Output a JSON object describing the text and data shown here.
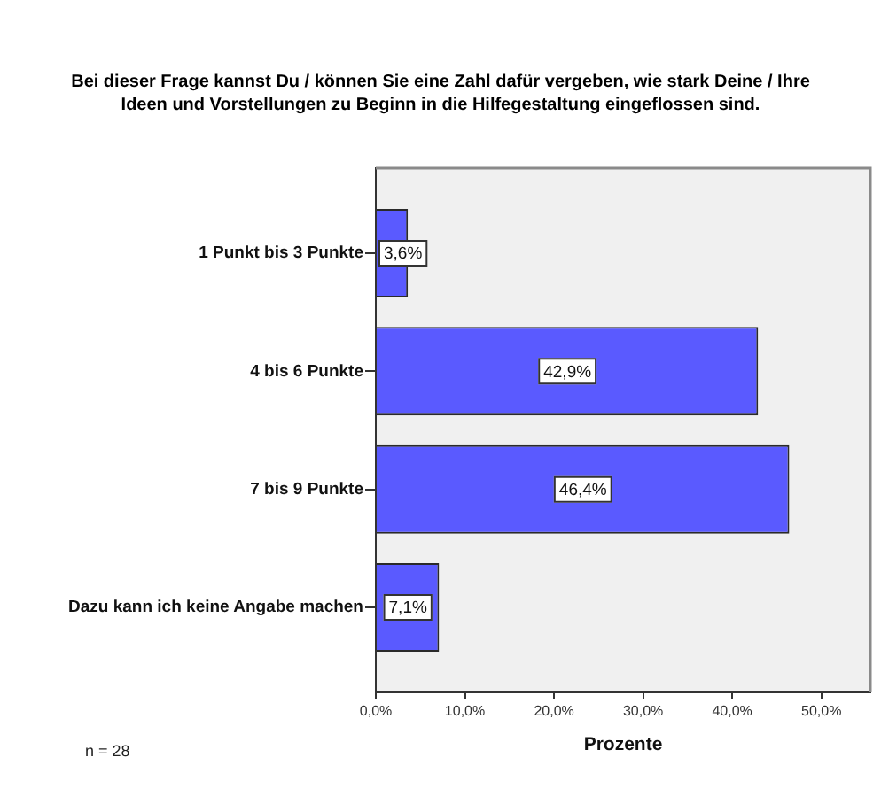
{
  "chart_data": {
    "type": "bar",
    "orientation": "horizontal",
    "title": "Bei dieser Frage kannst Du / können Sie eine Zahl dafür vergeben, wie stark Deine / Ihre Ideen und Vorstellungen zu Beginn in die Hilfegestaltung eingeflossen sind.",
    "xlabel": "Prozente",
    "categories": [
      "1 Punkt bis 3 Punkte",
      "4 bis 6 Punkte",
      "7 bis 9 Punkte",
      "Dazu kann ich keine Angabe machen"
    ],
    "values": [
      3.6,
      42.9,
      46.4,
      7.1
    ],
    "color": "#5a5aff",
    "value_labels": [
      "3,6%",
      "42,9%",
      "46,4%",
      "7,1%"
    ],
    "xlim": [
      0,
      55.5
    ],
    "xticks": [
      {
        "value": 0,
        "label": "0,0%"
      },
      {
        "value": 10,
        "label": "10,0%"
      },
      {
        "value": 20,
        "label": "20,0%"
      },
      {
        "value": 30,
        "label": "30,0%"
      },
      {
        "value": 40,
        "label": "40,0%"
      },
      {
        "value": 50,
        "label": "50,0%"
      }
    ],
    "legend": false,
    "grid": false,
    "annotations": [
      "n = 28"
    ]
  }
}
